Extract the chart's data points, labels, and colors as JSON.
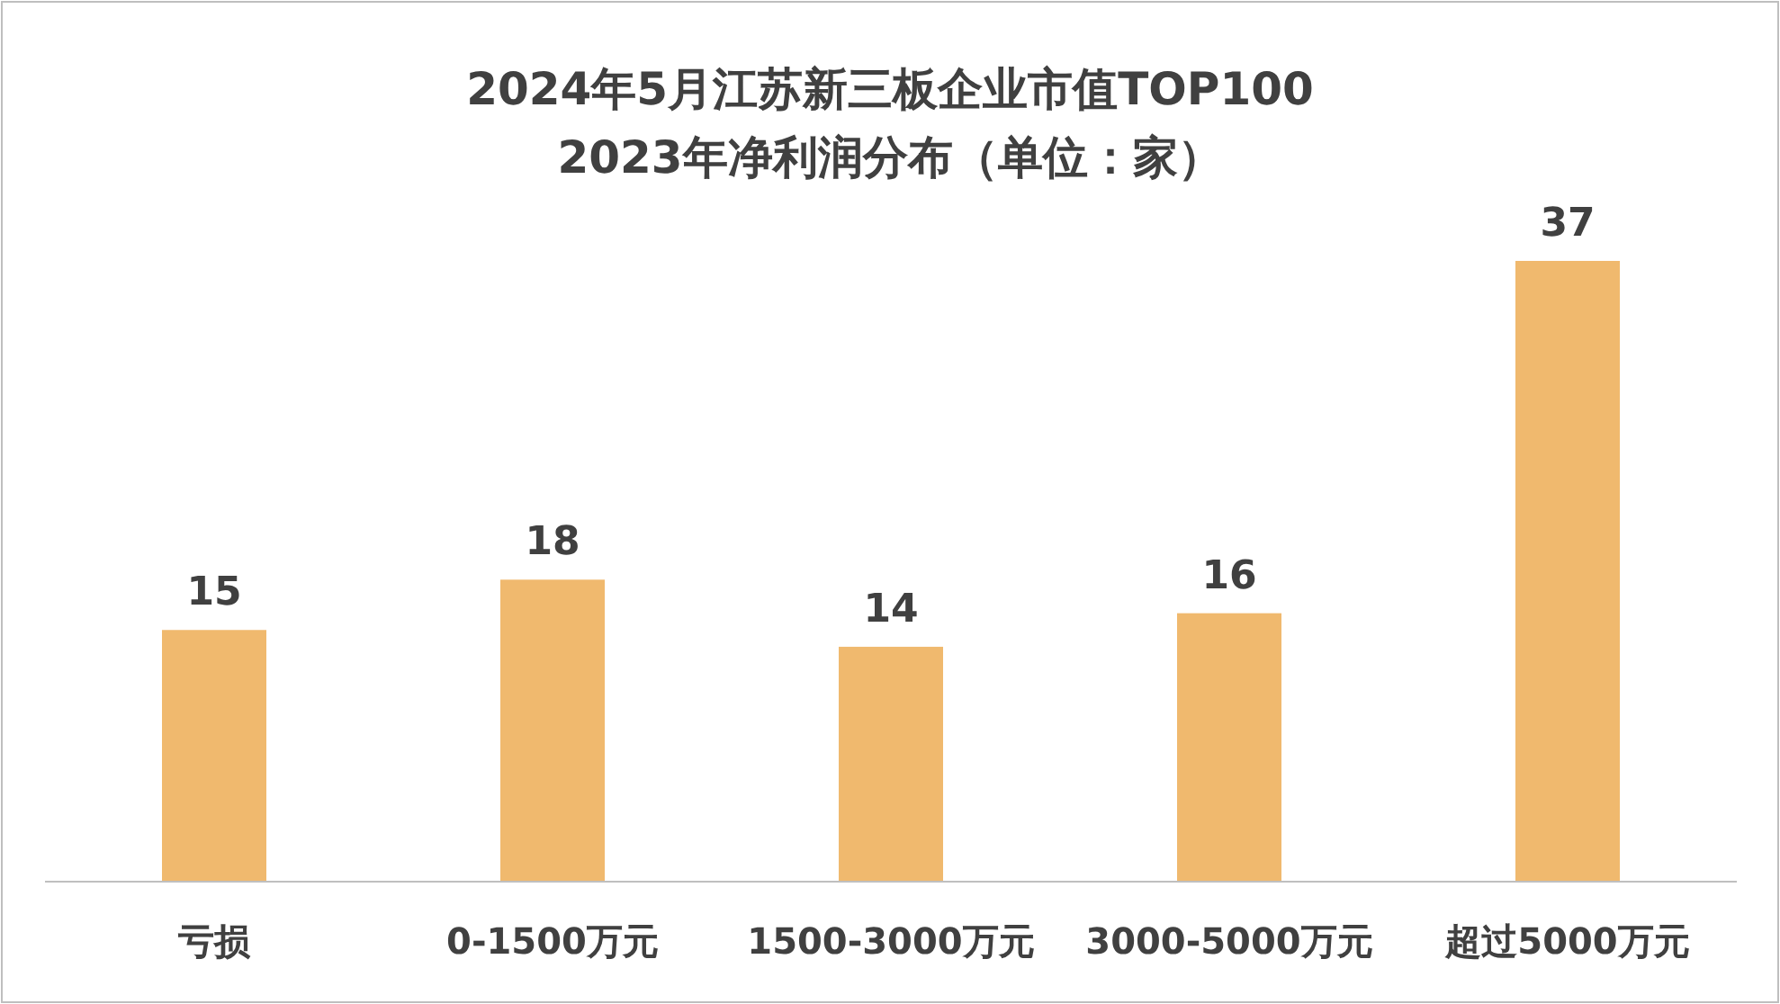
{
  "chart_data": {
    "type": "bar",
    "title": "2024年5月江苏新三板企业市值TOP100",
    "subtitle": "2023年净利润分布（单位：家）",
    "categories": [
      "亏损",
      "0-1500万元",
      "1500-3000万元",
      "3000-5000万元",
      "超过5000万元"
    ],
    "values": [
      15,
      18,
      14,
      16,
      37
    ],
    "color": "#f0b96e",
    "data_labels": true
  }
}
